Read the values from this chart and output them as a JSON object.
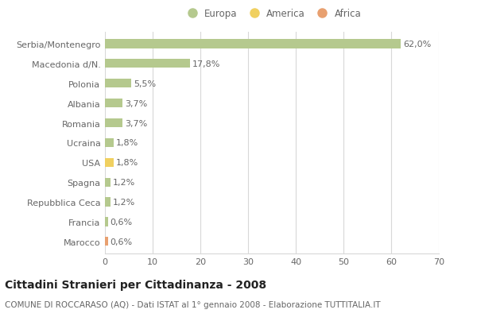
{
  "categories": [
    "Serbia/Montenegro",
    "Macedonia d/N.",
    "Polonia",
    "Albania",
    "Romania",
    "Ucraina",
    "USA",
    "Spagna",
    "Repubblica Ceca",
    "Francia",
    "Marocco"
  ],
  "values": [
    62.0,
    17.8,
    5.5,
    3.7,
    3.7,
    1.8,
    1.8,
    1.2,
    1.2,
    0.6,
    0.6
  ],
  "labels": [
    "62,0%",
    "17,8%",
    "5,5%",
    "3,7%",
    "3,7%",
    "1,8%",
    "1,8%",
    "1,2%",
    "1,2%",
    "0,6%",
    "0,6%"
  ],
  "colors": [
    "#b5c98e",
    "#b5c98e",
    "#b5c98e",
    "#b5c98e",
    "#b5c98e",
    "#b5c98e",
    "#f0d060",
    "#b5c98e",
    "#b5c98e",
    "#b5c98e",
    "#e8a070"
  ],
  "continents": [
    "Europa",
    "Europa",
    "Europa",
    "Europa",
    "Europa",
    "Europa",
    "America",
    "Europa",
    "Europa",
    "Europa",
    "Africa"
  ],
  "legend_labels": [
    "Europa",
    "America",
    "Africa"
  ],
  "legend_colors": [
    "#b5c98e",
    "#f0d060",
    "#e8a070"
  ],
  "xlim": [
    0,
    70
  ],
  "xticks": [
    0,
    10,
    20,
    30,
    40,
    50,
    60,
    70
  ],
  "title": "Cittadini Stranieri per Cittadinanza - 2008",
  "subtitle": "COMUNE DI ROCCARASO (AQ) - Dati ISTAT al 1° gennaio 2008 - Elaborazione TUTTITALIA.IT",
  "bg_color": "#ffffff",
  "grid_color": "#d8d8d8",
  "bar_height": 0.45,
  "title_fontsize": 10,
  "subtitle_fontsize": 7.5,
  "label_fontsize": 8,
  "tick_fontsize": 8,
  "legend_fontsize": 8.5
}
